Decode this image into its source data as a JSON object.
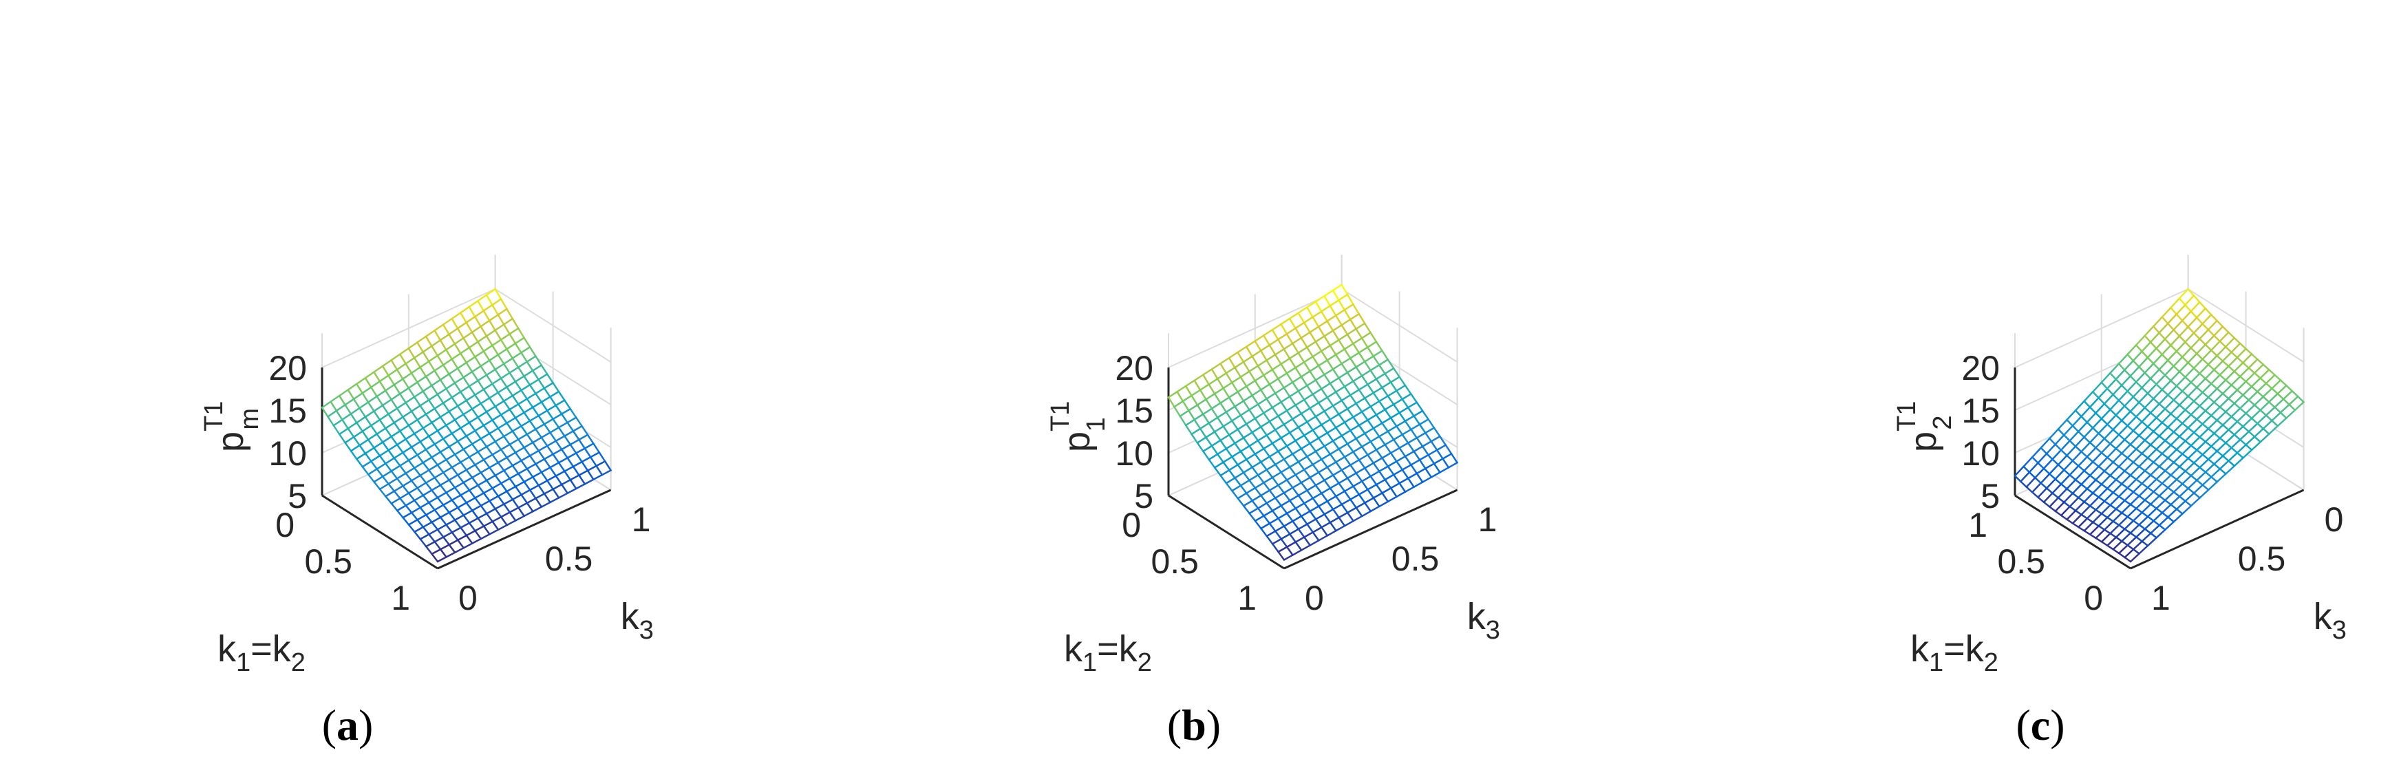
{
  "chart_data": [
    {
      "type": "surface",
      "caption": "(a)",
      "caption_letter": "a",
      "z_label": {
        "base": "p",
        "sup": "T1",
        "sub": "m"
      },
      "x_label": {
        "k": "k",
        "sub1": "1",
        "eq": "=k",
        "sub2": "2"
      },
      "y_label": {
        "base": "k",
        "sub": "3"
      },
      "z_ticks": [
        "5",
        "10",
        "15",
        "20"
      ],
      "x_ticks": [
        "0",
        "0.5",
        "1"
      ],
      "y_ticks": [
        "0",
        "0.5",
        "1"
      ],
      "zlim": [
        5,
        20
      ],
      "x_range": [
        0,
        1
      ],
      "y_range": [
        0,
        1
      ],
      "grid": true,
      "colormap": "parula",
      "corner_values": {
        "k12_0_k3_0": 15.3,
        "k12_1_k3_0": 5.8,
        "k12_0_k3_1": 20.0,
        "k12_1_k3_1": 7.3
      }
    },
    {
      "type": "surface",
      "caption": "(b)",
      "caption_letter": "b",
      "z_label": {
        "base": "p",
        "sup": "T1",
        "sub": "1"
      },
      "x_label": {
        "k": "k",
        "sub1": "1",
        "eq": "=k",
        "sub2": "2"
      },
      "y_label": {
        "base": "k",
        "sub": "3"
      },
      "z_ticks": [
        "5",
        "10",
        "15",
        "20"
      ],
      "x_ticks": [
        "0",
        "0.5",
        "1"
      ],
      "y_ticks": [
        "0",
        "0.5",
        "1"
      ],
      "zlim": [
        5,
        20
      ],
      "x_range": [
        0,
        1
      ],
      "y_range": [
        0,
        1
      ],
      "grid": true,
      "colormap": "parula",
      "corner_values": {
        "k12_0_k3_0": 16.5,
        "k12_1_k3_0": 6.0,
        "k12_0_k3_1": 20.5,
        "k12_1_k3_1": 8.2
      }
    },
    {
      "type": "surface",
      "caption": "(c)",
      "caption_letter": "c",
      "z_label": {
        "base": "p",
        "sup": "T1",
        "sub": "2"
      },
      "x_label": {
        "k": "k",
        "sub1": "1",
        "eq": "=k",
        "sub2": "2"
      },
      "y_label": {
        "base": "k",
        "sub": "3"
      },
      "z_ticks": [
        "5",
        "10",
        "15",
        "20"
      ],
      "x_ticks": [
        "1",
        "0.5",
        "0"
      ],
      "y_ticks": [
        "1",
        "0.5",
        "0"
      ],
      "zlim": [
        5,
        20
      ],
      "x_range": [
        1,
        0
      ],
      "y_range": [
        1,
        0
      ],
      "grid": true,
      "colormap": "parula",
      "corner_values": {
        "k12_1_k3_1": 7.3,
        "k12_0_k3_1": 5.8,
        "k12_1_k3_0": 20.0,
        "k12_0_k3_0": 15.3
      }
    }
  ]
}
